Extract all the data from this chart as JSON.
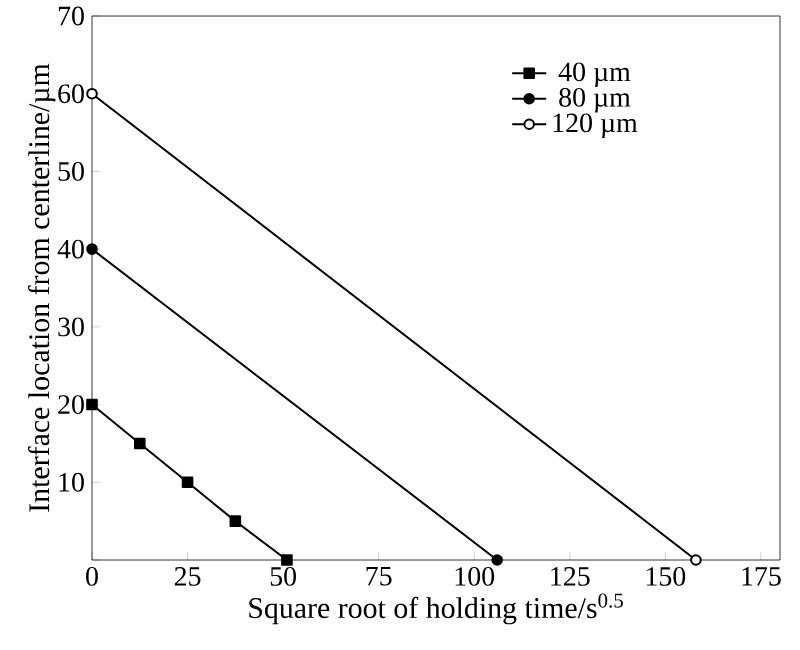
{
  "chart_data": {
    "type": "line",
    "xlabel": "Square root of holding time/s$^{0.5}$",
    "ylabel": "Interface location from centerline/µm",
    "xlim": [
      0,
      180
    ],
    "ylim": [
      0,
      70
    ],
    "xticks": [
      0,
      25,
      50,
      75,
      100,
      125,
      150,
      175
    ],
    "yticks": [
      {
        "value": 0,
        "label": null
      },
      10,
      20,
      30,
      40,
      50,
      60,
      70
    ],
    "grid": false,
    "legend": "top right",
    "series": [
      {
        "name": "40 µm",
        "color": "#000000",
        "marker": "square",
        "x": [
          0,
          12.5,
          25,
          37.5,
          51
        ],
        "values": [
          20,
          15,
          10,
          5,
          0
        ]
      },
      {
        "name": "80 µm",
        "color": "#000000",
        "marker": "circle",
        "x": [
          0,
          106
        ],
        "values": [
          40,
          0
        ]
      },
      {
        "name": "120 µm",
        "color": "#000000",
        "marker": "open circle",
        "x": [
          0,
          158
        ],
        "values": [
          60,
          0
        ]
      }
    ]
  }
}
